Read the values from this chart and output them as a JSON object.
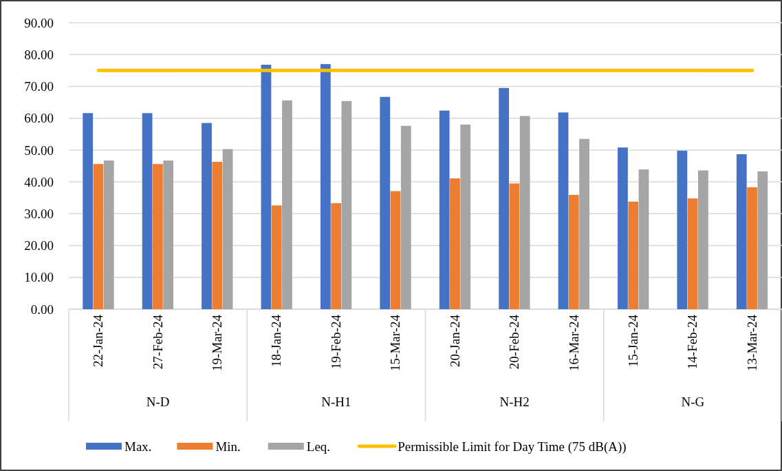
{
  "chart_data": {
    "type": "bar",
    "categories": [
      "22-Jan-24",
      "27-Feb-24",
      "19-Mar-24",
      "18-Jan-24",
      "19-Feb-24",
      "15-Mar-24",
      "20-Jan-24",
      "20-Feb-24",
      "16-Mar-24",
      "15-Jan-24",
      "14-Feb-24",
      "13-Mar-24"
    ],
    "series": [
      {
        "name": "Max.",
        "color": "#4472c4",
        "values": [
          61.6,
          61.6,
          58.5,
          76.8,
          77.0,
          66.7,
          62.4,
          69.5,
          61.8,
          50.8,
          49.8,
          48.7
        ]
      },
      {
        "name": "Min.",
        "color": "#ed7d31",
        "values": [
          45.6,
          45.6,
          46.3,
          32.6,
          33.3,
          37.1,
          41.1,
          39.5,
          35.9,
          33.8,
          34.8,
          38.3
        ]
      },
      {
        "name": "Leq.",
        "color": "#a5a5a5",
        "values": [
          46.7,
          46.7,
          50.3,
          65.6,
          65.4,
          57.6,
          58.0,
          60.7,
          53.5,
          43.9,
          43.6,
          43.3
        ]
      },
      {
        "name": "Permissible Limit for Day Time (75 dB(A))",
        "color": "#ffc000",
        "type": "line",
        "values": [
          75,
          75,
          75,
          75,
          75,
          75,
          75,
          75,
          75,
          75,
          75,
          75
        ]
      }
    ],
    "ylim": [
      0,
      90
    ],
    "yticks": [
      {
        "value": 0,
        "label": "0.00"
      },
      {
        "value": 10,
        "label": "10.00"
      },
      {
        "value": 20,
        "label": "20.00"
      },
      {
        "value": 30,
        "label": "30.00"
      },
      {
        "value": 40,
        "label": "40.00"
      },
      {
        "value": 50,
        "label": "50.00"
      },
      {
        "value": 60,
        "label": "60.00"
      },
      {
        "value": 70,
        "label": "70.00"
      },
      {
        "value": 80,
        "label": "80.00"
      },
      {
        "value": 90,
        "label": "90.00"
      }
    ],
    "annotations": [
      "N-D",
      "N-H1",
      "N-H2",
      "N-G"
    ],
    "grid": "y",
    "legend": "bottom",
    "marker": "none"
  }
}
